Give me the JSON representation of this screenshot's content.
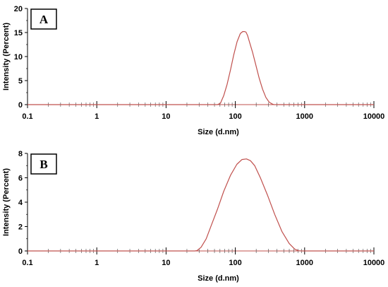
{
  "chart_data": [
    {
      "type": "line",
      "panel_label": "A",
      "xlabel": "Size (d.nm)",
      "ylabel": "Intensity (Percent)",
      "x_scale": "log",
      "xlim": [
        0.1,
        10000
      ],
      "ylim": [
        0,
        20
      ],
      "x_ticks": [
        "0.1",
        "1",
        "10",
        "100",
        "1000",
        "10000"
      ],
      "y_ticks": [
        "0",
        "5",
        "10",
        "15",
        "20"
      ],
      "grid": false,
      "line_color": "#c0504d",
      "series": [
        {
          "x": [
            0.1,
            40,
            55,
            61,
            68,
            76,
            85,
            95,
            106,
            118,
            128,
            135,
            142,
            150,
            158,
            177,
            198,
            221,
            247,
            276,
            308,
            344,
            360,
            10000
          ],
          "y": [
            0,
            0,
            0,
            0.3,
            1.9,
            4.2,
            7.2,
            10.4,
            13.1,
            14.8,
            15.2,
            15.2,
            15.1,
            14.4,
            13.3,
            10.9,
            8.2,
            5.5,
            3.2,
            1.5,
            0.5,
            0.1,
            0,
            0
          ]
        }
      ]
    },
    {
      "type": "line",
      "panel_label": "B",
      "xlabel": "Size (d.nm)",
      "ylabel": "Intensity (Percent)",
      "x_scale": "log",
      "xlim": [
        0.1,
        10000
      ],
      "ylim": [
        0,
        8
      ],
      "x_ticks": [
        "0.1",
        "1",
        "10",
        "100",
        "1000",
        "10000"
      ],
      "y_ticks": [
        "0",
        "2",
        "4",
        "6",
        "8"
      ],
      "grid": false,
      "line_color": "#c0504d",
      "series": [
        {
          "x": [
            0.1,
            26,
            28,
            32,
            38,
            45,
            55,
            68,
            85,
            105,
            125,
            145,
            165,
            190,
            230,
            290,
            370,
            470,
            600,
            720,
            820,
            900,
            10000
          ],
          "y": [
            0,
            0,
            0.03,
            0.3,
            1.0,
            2.1,
            3.4,
            4.9,
            6.2,
            7.1,
            7.5,
            7.55,
            7.4,
            7.0,
            6.0,
            4.6,
            3.0,
            1.6,
            0.6,
            0.15,
            0.02,
            0,
            0
          ]
        }
      ]
    }
  ]
}
